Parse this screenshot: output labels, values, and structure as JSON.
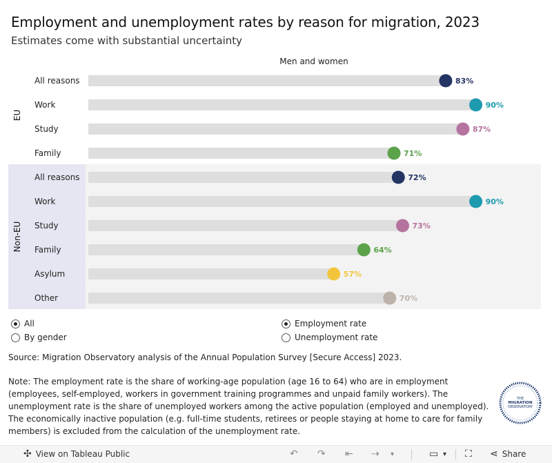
{
  "header": {
    "title": "Employment and unemployment rates by reason for migration, 2023",
    "subtitle": "Estimates come with substantial uncertainty"
  },
  "panel_label": "Men and women",
  "chart_data": {
    "type": "bar",
    "title": "Employment and unemployment rates by reason for migration, 2023",
    "subtitle": "Estimates come with substantial uncertainty",
    "xlim": [
      0,
      100
    ],
    "groups": [
      {
        "label": "EU",
        "rows": [
          {
            "category": "All reasons",
            "value": 83,
            "label": "83%",
            "color": "#233463"
          },
          {
            "category": "Work",
            "value": 90,
            "label": "90%",
            "color": "#1e9aaf"
          },
          {
            "category": "Study",
            "value": 87,
            "label": "87%",
            "color": "#b5739f"
          },
          {
            "category": "Family",
            "value": 71,
            "label": "71%",
            "color": "#5ba24a"
          }
        ]
      },
      {
        "label": "Non-EU",
        "rows": [
          {
            "category": "All reasons",
            "value": 72,
            "label": "72%",
            "color": "#233463"
          },
          {
            "category": "Work",
            "value": 90,
            "label": "90%",
            "color": "#1e9aaf"
          },
          {
            "category": "Study",
            "value": 73,
            "label": "73%",
            "color": "#b5739f"
          },
          {
            "category": "Family",
            "value": 64,
            "label": "64%",
            "color": "#5ba24a"
          },
          {
            "category": "Asylum",
            "value": 57,
            "label": "57%",
            "color": "#f2c53d"
          },
          {
            "category": "Other",
            "value": 70,
            "label": "70%",
            "color": "#bcb3ab"
          }
        ]
      }
    ],
    "track_color": "#dedede"
  },
  "filters": {
    "view": [
      {
        "label": "All",
        "selected": true
      },
      {
        "label": "By gender",
        "selected": false
      }
    ],
    "measure": [
      {
        "label": "Employment rate",
        "selected": true
      },
      {
        "label": "Unemployment rate",
        "selected": false
      }
    ]
  },
  "source": "Source: Migration Observatory analysis of the Annual Population Survey [Secure Access] 2023.",
  "note": "Note: The employment rate is the share of working-age population (age 16 to 64) who are in employment (employees, self-employed, workers in government training programmes and unpaid family workers). The unemployment rate is the share of unemployed workers among the active population (employed and unemployed). The economically inactive population (e.g. full-time students, retirees or people staying at home to care for family members) is excluded from the calculation of the unemployment rate.",
  "logo": {
    "line1": "THE",
    "line2": "MIGRATION",
    "line3": "OBSERVATORY"
  },
  "toolbar": {
    "view_on_tableau": "View on Tableau Public",
    "share": "Share"
  }
}
